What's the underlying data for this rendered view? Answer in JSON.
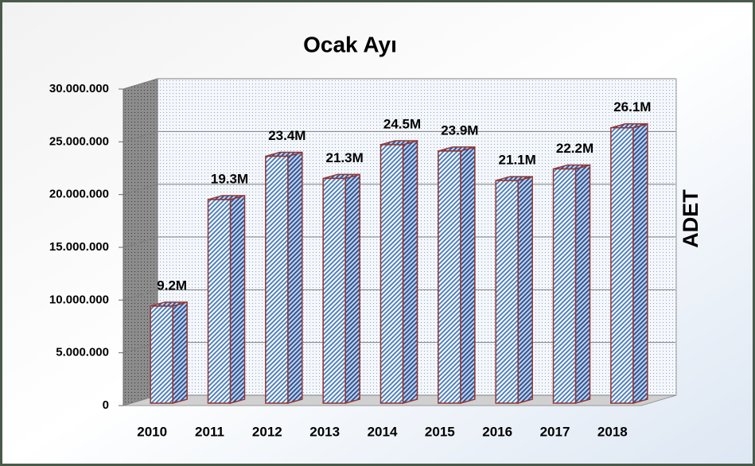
{
  "chart_data": {
    "type": "bar3d",
    "title": "Ocak Ayı",
    "y_label": "ADET",
    "categories": [
      "2010",
      "2011",
      "2012",
      "2013",
      "2014",
      "2015",
      "2016",
      "2017",
      "2018"
    ],
    "values": [
      9200000,
      19300000,
      23400000,
      21300000,
      24500000,
      23900000,
      21100000,
      22200000,
      26100000
    ],
    "value_labels": [
      "9.2M",
      "19.3M",
      "23.4M",
      "21.3M",
      "24.5M",
      "23.9M",
      "21.1M",
      "22.2M",
      "26.1M"
    ],
    "color": "#4f81bd",
    "edge_color": "#943634",
    "ylim": [
      0,
      30000000
    ],
    "yticks": [
      0,
      {
        "value": 5000000,
        "label": "5.000.000"
      },
      {
        "value": 10000000,
        "label": "10.000.000"
      },
      {
        "value": 15000000,
        "label": "15.000.000"
      },
      {
        "value": 20000000,
        "label": "20.000.000"
      },
      {
        "value": 25000000,
        "label": "25.000.000"
      },
      {
        "value": 30000000,
        "label": "30.000.000"
      }
    ],
    "grid": true
  }
}
